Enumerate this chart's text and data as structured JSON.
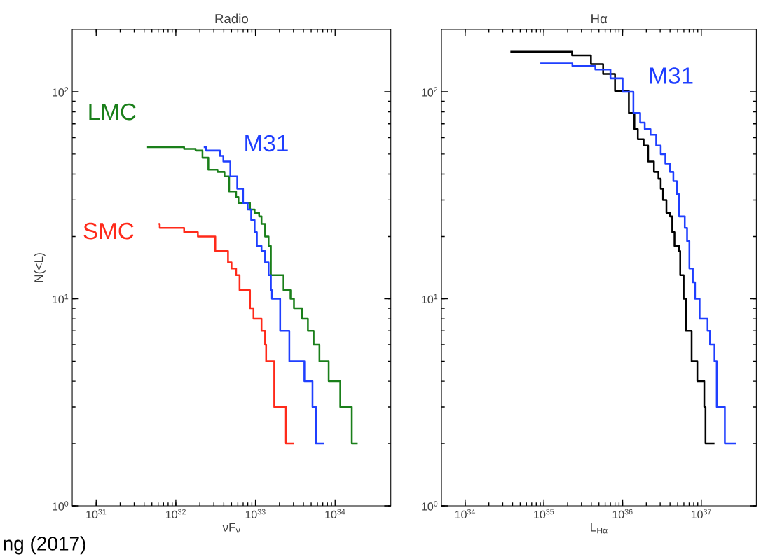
{
  "chart_data": [
    {
      "type": "step",
      "title": "Radio",
      "xlabel": "νF$_{ν}$",
      "ylabel": "N(<L)",
      "log": "xy",
      "xlim": [
        5e+30,
        5e+34
      ],
      "ylim": [
        1,
        200
      ],
      "xticks": [
        {
          "value": 1e+31,
          "label": "10$^{31}$"
        },
        {
          "value": 1e+32,
          "label": "10$^{32}$"
        },
        {
          "value": 1e+33,
          "label": "10$^{33}$"
        },
        {
          "value": 1e+34,
          "label": "10$^{34}$"
        }
      ],
      "yticks": [
        {
          "value": 1,
          "label": "10$^{0}$"
        },
        {
          "value": 10,
          "label": "10$^{1}$"
        },
        {
          "value": 100,
          "label": "10$^{2}$"
        }
      ],
      "annotations": [
        "ng (2017)"
      ],
      "series": [
        {
          "name": "LMC",
          "color": "#1a7f1a",
          "x": [
            4.35e+31,
            1.27e+32,
            1.77e+32,
            2.16e+32,
            2.56e+32,
            3.34e+32,
            4.08e+32,
            4.67e+32,
            5.71e+32,
            6.11e+32,
            8.53e+32,
            9.75e+32,
            1.11e+33,
            1.19e+33,
            1.32e+33,
            1.46e+33,
            1.56e+33,
            2.25e+33,
            2.75e+33,
            3.04e+33,
            3.85e+33,
            4.55e+33,
            5.37e+33,
            6.35e+33,
            8.3e+33,
            1.16e+34,
            1.62e+34,
            1.92e+34
          ],
          "values": [
            54,
            53,
            52,
            48,
            42,
            41,
            39,
            33,
            31,
            29,
            27,
            26,
            25,
            23,
            20,
            18,
            13,
            11,
            10,
            9,
            8,
            7,
            6,
            5,
            4,
            3,
            2,
            2
          ]
        },
        {
          "name": "M31",
          "color": "#1f3fff",
          "x": [
            2.24e+32,
            2.39e+32,
            3.57e+32,
            3.95e+32,
            4.83e+32,
            5.9e+32,
            6.98e+32,
            7.98e+32,
            8.83e+32,
            9.75e+32,
            1.04e+33,
            1.19e+33,
            1.32e+33,
            1.46e+33,
            1.56e+33,
            1.61e+33,
            2.04e+33,
            2.66e+33,
            4.11e+33,
            5.2e+33,
            5.74e+33,
            7.26e+33
          ],
          "values": [
            54,
            52,
            49,
            46,
            39,
            34,
            29,
            27,
            24,
            21,
            18,
            17,
            15,
            13,
            11,
            10,
            7,
            5,
            4,
            3,
            2,
            2
          ]
        },
        {
          "name": "SMC",
          "color": "#ff2a1a",
          "x": [
            6.07e+31,
            6.28e+31,
            1.27e+32,
            1.89e+32,
            3.13e+32,
            4.52e+32,
            5e+32,
            5.71e+32,
            6.31e+32,
            8.53e+32,
            9.44e+32,
            1.19e+33,
            1.32e+33,
            1.36e+33,
            1.72e+33,
            2.41e+33,
            3.04e+33
          ],
          "values": [
            23,
            22,
            21,
            20,
            17,
            15,
            14,
            13,
            11,
            9,
            8,
            7,
            6,
            5,
            3,
            2,
            2
          ]
        }
      ]
    },
    {
      "type": "step",
      "title": "Hα",
      "xlabel": "L$_{Hα}$",
      "log": "xy",
      "xlim": [
        5e+33,
        5e+37
      ],
      "ylim": [
        1,
        200
      ],
      "xticks": [
        {
          "value": 1e+34,
          "label": "10$^{34}$"
        },
        {
          "value": 1e+35,
          "label": "10$^{35}$"
        },
        {
          "value": 1e+36,
          "label": "10$^{36}$"
        },
        {
          "value": 1e+37,
          "label": "10$^{37}$"
        }
      ],
      "yticks": [
        {
          "value": 1,
          "label": "10$^{0}$"
        },
        {
          "value": 10,
          "label": "10$^{1}$"
        },
        {
          "value": 100,
          "label": "10$^{2}$"
        }
      ],
      "series": [
        {
          "color": "#000000",
          "x": [
            3.75e+34,
            1.99e+35,
            2.28e+35,
            3.96e+35,
            5.65e+35,
            8e+35,
            1.2e+36,
            1.41e+36,
            1.56e+36,
            1.85e+36,
            2.11e+36,
            2.5e+36,
            2.85e+36,
            3.05e+36,
            3.26e+36,
            3.6e+36,
            3.99e+36,
            4.27e+36,
            4.56e+36,
            5.21e+36,
            5.39e+36,
            5.96e+36,
            6.37e+36,
            7.53e+36,
            8.89e+36,
            1.09e+37,
            1.13e+37,
            1.47e+37
          ],
          "values": [
            156,
            156,
            150,
            136,
            122,
            101,
            79,
            66,
            59,
            55,
            46,
            41,
            38,
            34,
            30,
            26,
            25,
            21,
            18,
            17,
            13,
            10,
            7,
            5,
            4,
            3,
            2,
            2
          ]
        },
        {
          "name": "M31",
          "color": "#1f3fff",
          "x": [
            9e+34,
            2.3e+35,
            4.5e+35,
            7e+35,
            1e+36,
            1.37e+36,
            1.67e+36,
            1.91e+36,
            2.26e+36,
            2.67e+36,
            3.05e+36,
            3.49e+36,
            3.99e+36,
            4.41e+36,
            4.88e+36,
            5.21e+36,
            6.16e+36,
            6.59e+36,
            7.05e+36,
            7.79e+36,
            8.32e+36,
            9.51e+36,
            1.2e+37,
            1.29e+37,
            1.47e+37,
            1.57e+37,
            1.99e+37,
            2.78e+37
          ],
          "values": [
            137,
            133,
            128,
            116,
            100,
            79,
            71,
            66,
            62,
            55,
            50,
            45,
            41,
            37,
            32,
            25,
            22,
            19,
            14,
            12,
            10,
            8,
            7,
            6,
            5,
            3,
            2,
            2
          ]
        }
      ]
    }
  ]
}
